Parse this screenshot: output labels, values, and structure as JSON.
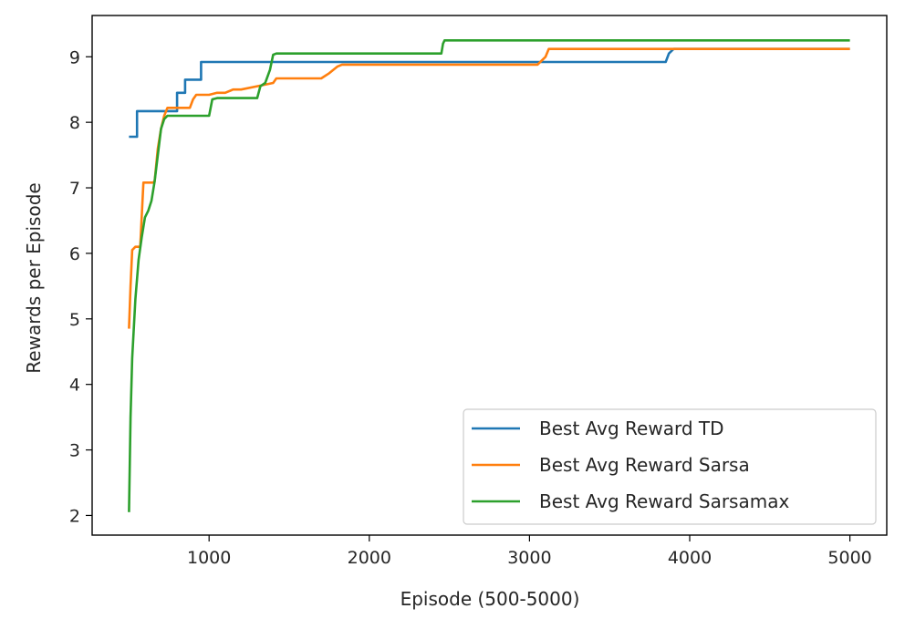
{
  "chart_data": {
    "type": "line",
    "title": "",
    "xlabel": "Episode (500-5000)",
    "ylabel": "Rewards per Episode",
    "xlim": [
      270,
      5230
    ],
    "ylim": [
      1.7,
      9.63
    ],
    "xticks": [
      1000,
      2000,
      3000,
      4000,
      5000
    ],
    "yticks": [
      2,
      3,
      4,
      5,
      6,
      7,
      8,
      9
    ],
    "grid": false,
    "legend_position": "lower right",
    "series": [
      {
        "name": "Best Avg Reward TD",
        "color": "#1f77b4",
        "x": [
          500,
          550,
          550,
          800,
          800,
          850,
          850,
          950,
          950,
          3850,
          3870,
          3900,
          5000
        ],
        "y": [
          7.78,
          7.78,
          8.17,
          8.17,
          8.45,
          8.45,
          8.65,
          8.65,
          8.92,
          8.92,
          9.05,
          9.12,
          9.12
        ]
      },
      {
        "name": "Best Avg Reward Sarsa",
        "color": "#ff7f0e",
        "x": [
          500,
          510,
          520,
          540,
          570,
          590,
          600,
          650,
          660,
          680,
          700,
          720,
          740,
          760,
          800,
          880,
          900,
          920,
          1000,
          1050,
          1100,
          1150,
          1200,
          1300,
          1400,
          1420,
          1500,
          1700,
          1750,
          1800,
          1830,
          3050,
          3100,
          3120,
          3900,
          5000
        ],
        "y": [
          4.85,
          5.5,
          6.05,
          6.1,
          6.1,
          7.08,
          7.08,
          7.08,
          7.1,
          7.6,
          7.9,
          8.1,
          8.22,
          8.22,
          8.22,
          8.22,
          8.35,
          8.42,
          8.42,
          8.45,
          8.45,
          8.5,
          8.5,
          8.55,
          8.6,
          8.67,
          8.67,
          8.67,
          8.75,
          8.85,
          8.88,
          8.88,
          9.0,
          9.12,
          9.12,
          9.12
        ]
      },
      {
        "name": "Best Avg Reward Sarsamax",
        "color": "#2ca02c",
        "x": [
          500,
          510,
          520,
          540,
          560,
          580,
          600,
          620,
          640,
          660,
          680,
          700,
          720,
          740,
          760,
          1000,
          1020,
          1050,
          1100,
          1300,
          1320,
          1350,
          1380,
          1400,
          1420,
          2450,
          2460,
          2470,
          5000
        ],
        "y": [
          2.05,
          3.5,
          4.4,
          5.3,
          5.9,
          6.25,
          6.55,
          6.65,
          6.8,
          7.1,
          7.5,
          7.9,
          8.05,
          8.1,
          8.1,
          8.1,
          8.35,
          8.37,
          8.37,
          8.37,
          8.55,
          8.6,
          8.8,
          9.03,
          9.05,
          9.05,
          9.2,
          9.25,
          9.25
        ]
      }
    ]
  }
}
